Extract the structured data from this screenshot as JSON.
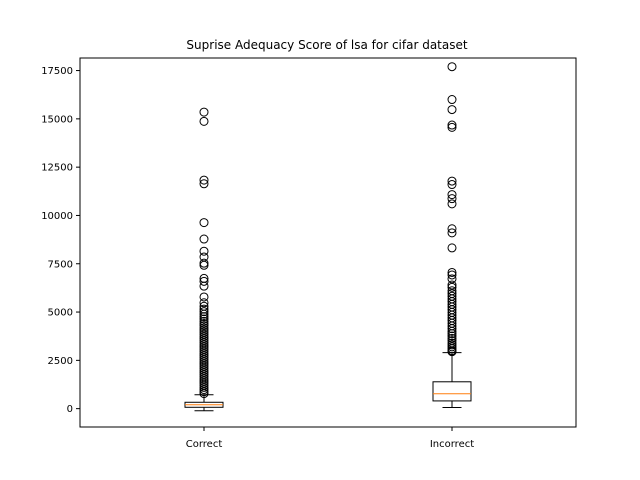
{
  "chart_data": {
    "type": "box",
    "title": "Suprise Adequacy Score of lsa for cifar dataset",
    "xlabel": "",
    "ylabel": "",
    "ylim": [
      -950,
      18150
    ],
    "yticks": [
      0,
      2500,
      5000,
      7500,
      10000,
      12500,
      15000,
      17500
    ],
    "ytick_labels": [
      "0",
      "2500",
      "5000",
      "7500",
      "10000",
      "12500",
      "15000",
      "17500"
    ],
    "grid": false,
    "categories": [
      "Correct",
      "Incorrect"
    ],
    "boxes": [
      {
        "label": "Correct",
        "whisker_low": -110,
        "q1": 70,
        "median": 200,
        "q3": 330,
        "whisker_high": 720,
        "outliers": [
          15350,
          14870,
          11830,
          11640,
          9630,
          8780,
          8150,
          7850,
          7530,
          7420,
          6740,
          6590,
          6340,
          5780,
          5480,
          5300,
          5150,
          5020,
          4890,
          4760,
          4640,
          4520,
          4410,
          4300,
          4180,
          4070,
          3960,
          3850,
          3740,
          3630,
          3520,
          3410,
          3300,
          3190,
          3080,
          2970,
          2860,
          2750,
          2640,
          2530,
          2420,
          2310,
          2200,
          2090,
          1980,
          1870,
          1760,
          1650,
          1540,
          1430,
          1320,
          1210,
          1100,
          990,
          880,
          780
        ]
      },
      {
        "label": "Incorrect",
        "whisker_low": 60,
        "q1": 400,
        "median": 770,
        "q3": 1390,
        "whisker_high": 2900,
        "outliers": [
          17700,
          16000,
          15480,
          14680,
          14560,
          11780,
          11600,
          11080,
          10870,
          10600,
          9310,
          9100,
          8320,
          7050,
          6920,
          6720,
          6400,
          6280,
          6100,
          5960,
          5820,
          5680,
          5540,
          5400,
          5260,
          5120,
          4980,
          4840,
          4700,
          4560,
          4420,
          4280,
          4140,
          4000,
          3880,
          3760,
          3640,
          3520,
          3400,
          3300,
          3200,
          3100,
          3000,
          2950
        ]
      }
    ],
    "colors": {
      "box": "#000000",
      "median": "#ff7f0e",
      "outlier": "#000000"
    }
  }
}
